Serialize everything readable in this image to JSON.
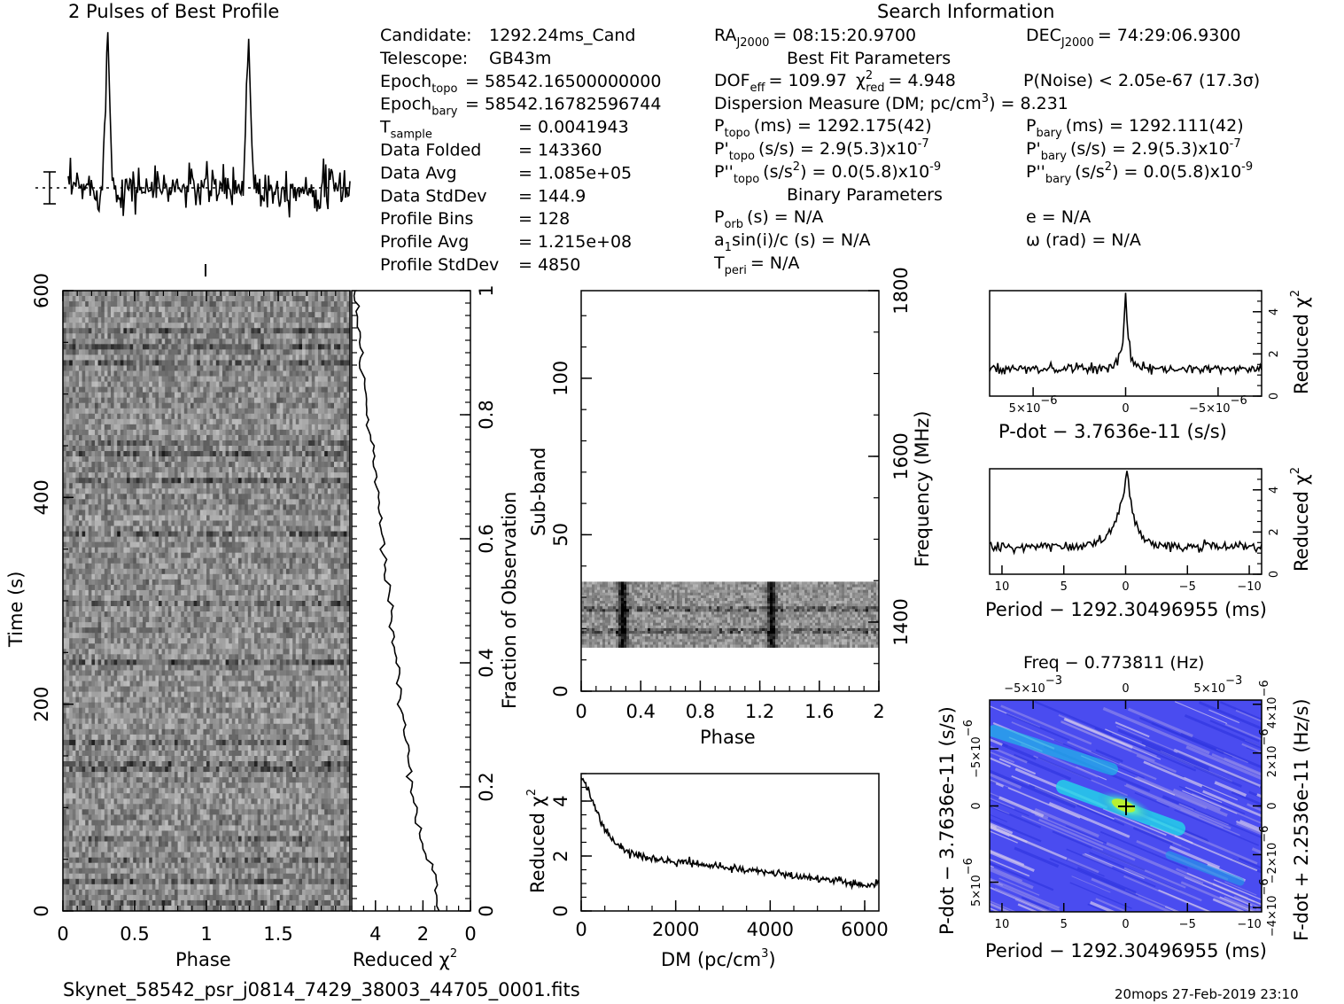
{
  "header": {
    "profile_title": "2 Pulses of Best Profile",
    "search_title": "Search Information",
    "best_fit_title": "Best Fit Parameters",
    "binary_title": "Binary Parameters"
  },
  "candidate_info": [
    {
      "label": "Candidate:",
      "value": "1292.24ms_Cand"
    },
    {
      "label": "Telescope:",
      "value": "GB43m"
    },
    {
      "label": "Epoch",
      "sub": "topo",
      "value": "= 58542.16500000000"
    },
    {
      "label": "Epoch",
      "sub": "bary",
      "value": "= 58542.16782596744"
    },
    {
      "label": "T",
      "sub": "sample",
      "value": "=   0.0041943"
    },
    {
      "label": "Data Folded",
      "value": "=   143360"
    },
    {
      "label": "Data Avg",
      "value": "=   1.085e+05"
    },
    {
      "label": "Data StdDev",
      "value": "=   144.9"
    },
    {
      "label": "Profile Bins",
      "value": "=   128"
    },
    {
      "label": "Profile Avg",
      "value": "=   1.215e+08"
    },
    {
      "label": "Profile StdDev",
      "value": "=   4850"
    }
  ],
  "search_info": {
    "ra": "RA",
    "ra_sub": "J2000",
    "ra_value": "= 08:15:20.9700",
    "dec": "DEC",
    "dec_sub": "J2000",
    "dec_value": "= 74:29:06.9300",
    "dof_line": "DOF",
    "dof_sub": "eff",
    "dof_value": "= 109.97",
    "chi_label": "χ",
    "chi_sup": "2",
    "chi_sub": "red",
    "chi_value": "= 4.948",
    "noise": "P(Noise) < 2.05e-67   (17.3σ)",
    "dm_line": "Dispersion Measure (DM; pc/cm",
    "dm_sup": "3",
    "dm_value": ") = 8.231",
    "ptopo": "P",
    "ptopo_sub": "topo",
    "ptopo_value": "(ms) =   1292.175(42)",
    "pbary": "P",
    "pbary_sub": "bary",
    "pbary_value": "(ms) =   1292.111(42)",
    "pdtopo": "P'",
    "pdtopo_sub": "topo",
    "pdtopo_value": "(s/s) =   2.9(5.3)x10",
    "pdtopo_exp": "-7",
    "pdbary": "P'",
    "pdbary_sub": "bary",
    "pdbary_value": "(s/s) =   2.9(5.3)x10",
    "pdbary_exp": "-7",
    "pddtopo": "P''",
    "pddtopo_sub": "topo",
    "pddtopo_value": "(s/s",
    "pddtopo_value2": ") = 0.0(5.8)x10",
    "pddtopo_exp": "-9",
    "pddbary": "P''",
    "pddbary_sub": "bary",
    "pddbary_value": "(s/s",
    "pddbary_value2": ") = 0.0(5.8)x10",
    "pddbary_exp": "-9",
    "porb": "P",
    "porb_sub": "orb",
    "porb_value": "(s) = N/A",
    "ecc": "e = N/A",
    "a1": "a",
    "a1_sub": "1",
    "a1_value": "sin(i)/c (s) = N/A",
    "omega": "ω (rad) = N/A",
    "tperi": "T",
    "tperi_sub": "peri",
    "tperi_value": "= N/A"
  },
  "footer": {
    "filename": "Skynet_58542_psr_j0814_7429_38003_44705_0001.fits",
    "stamp": "20mops 27-Feb-2019 23:10"
  },
  "chart_data": [
    {
      "type": "line",
      "name": "profile",
      "title": "2 Pulses of Best Profile",
      "x": [
        0,
        2
      ],
      "peaks_phase": [
        0.28,
        1.28
      ],
      "style": "two pulses with noise"
    },
    {
      "type": "heatmap",
      "name": "time-phase",
      "xlabel": "Phase",
      "ylabel": "Time (s)",
      "xlim": [
        0,
        2
      ],
      "ylim": [
        0,
        600
      ],
      "xticks": [
        "0",
        "0.5",
        "1",
        "1.5"
      ],
      "yticks": [
        "0",
        "200",
        "400",
        "600"
      ]
    },
    {
      "type": "line",
      "name": "reduced-chi2-vs-time",
      "xlabel": "Reduced χ",
      "xlabel_sup": "2",
      "ylabel": "Fraction of Observation",
      "xlim": [
        5,
        0
      ],
      "ylim": [
        0,
        1
      ],
      "xticks": [
        "4",
        "2",
        "0"
      ],
      "yticks": [
        "0",
        "0.2",
        "0.4",
        "0.6",
        "0.8",
        "1"
      ],
      "fraction": [
        0,
        0.05,
        0.1,
        0.15,
        0.2,
        0.3,
        0.4,
        0.5,
        0.6,
        0.7,
        0.8,
        0.9,
        1.0
      ],
      "values": [
        1.3,
        1.5,
        2.0,
        2.3,
        2.5,
        2.8,
        3.1,
        3.4,
        3.7,
        4.0,
        4.3,
        4.6,
        4.9
      ]
    },
    {
      "type": "heatmap",
      "name": "subband-phase",
      "xlabel": "Phase",
      "ylabel": "Sub-band",
      "y2label": "Frequency (MHz)",
      "xlim": [
        0,
        2
      ],
      "ylim": [
        0,
        128
      ],
      "xticks": [
        "0",
        "0.4",
        "0.8",
        "1.2",
        "1.6",
        "2"
      ],
      "yticks": [
        "0",
        "50",
        "100"
      ],
      "y2ticks": [
        "1400",
        "1600",
        "1800"
      ],
      "data_band": [
        14,
        35
      ]
    },
    {
      "type": "line",
      "name": "reduced-chi2-vs-dm",
      "xlabel": "DM (pc/cm",
      "xlabel_sup": "3",
      "xlabel_end": ")",
      "ylabel": "Reduced χ",
      "ylabel_sup": "2",
      "xlim": [
        0,
        6300
      ],
      "ylim": [
        0,
        5
      ],
      "xticks": [
        "0",
        "2000",
        "4000",
        "6000"
      ],
      "yticks": [
        "0",
        "2",
        "4"
      ],
      "x": [
        0,
        200,
        400,
        700,
        1000,
        1500,
        2000,
        2500,
        3000,
        3500,
        4000,
        4500,
        5000,
        5500,
        6000,
        6300
      ],
      "values": [
        4.9,
        4.2,
        3.3,
        2.5,
        2.1,
        1.9,
        1.8,
        1.7,
        1.6,
        1.5,
        1.4,
        1.3,
        1.2,
        1.1,
        0.9,
        1.0
      ]
    },
    {
      "type": "line",
      "name": "reduced-chi2-vs-pdot",
      "xlabel": "P-dot − 3.7636e-11 (s/s)",
      "ylabel": "Reduced χ",
      "ylabel_sup": "2",
      "xlim": [
        8e-06,
        -8e-06
      ],
      "ylim": [
        0,
        5
      ],
      "xticks": [
        "5×10",
        "0",
        "−5×10"
      ],
      "xtick_exp": "−6",
      "yticks": [
        "0",
        "2",
        "4"
      ],
      "peak": 4.9,
      "baseline": 1.3
    },
    {
      "type": "line",
      "name": "reduced-chi2-vs-period",
      "xlabel": "Period − 1292.30496955 (ms)",
      "ylabel": "Reduced χ",
      "ylabel_sup": "2",
      "xlim": [
        11,
        -11
      ],
      "ylim": [
        0,
        5
      ],
      "xticks": [
        "10",
        "5",
        "0",
        "−5",
        "−10"
      ],
      "yticks": [
        "0",
        "2",
        "4"
      ],
      "peak": 4.9,
      "baseline": 1.3
    },
    {
      "type": "heatmap",
      "name": "period-pdot-plane",
      "title": "Freq − 0.773811 (Hz)",
      "xlabel": "Period − 1292.30496955 (ms)",
      "ylabel": "P-dot − 3.7636e-11 (s/s)",
      "y2label": "F-dot + 2.2536e-11 (Hz/s)",
      "xlim": [
        11,
        -11
      ],
      "xticks": [
        "10",
        "5",
        "0",
        "−5",
        "−10"
      ],
      "x2ticks": [
        "−5×10",
        "0",
        "5×10"
      ],
      "x2tick_exp": "−3",
      "yticks": [
        "−5×10",
        "0",
        "5×10"
      ],
      "ytick_exp": "−6",
      "y2ticks": [
        "−4×10",
        "−2×10",
        "0",
        "2×10",
        "4×10"
      ],
      "y2tick_exp": "−6",
      "colors": {
        "background": "#4a4cf0",
        "ridge": "#20d8e8",
        "peak": "#b8f030"
      }
    }
  ]
}
